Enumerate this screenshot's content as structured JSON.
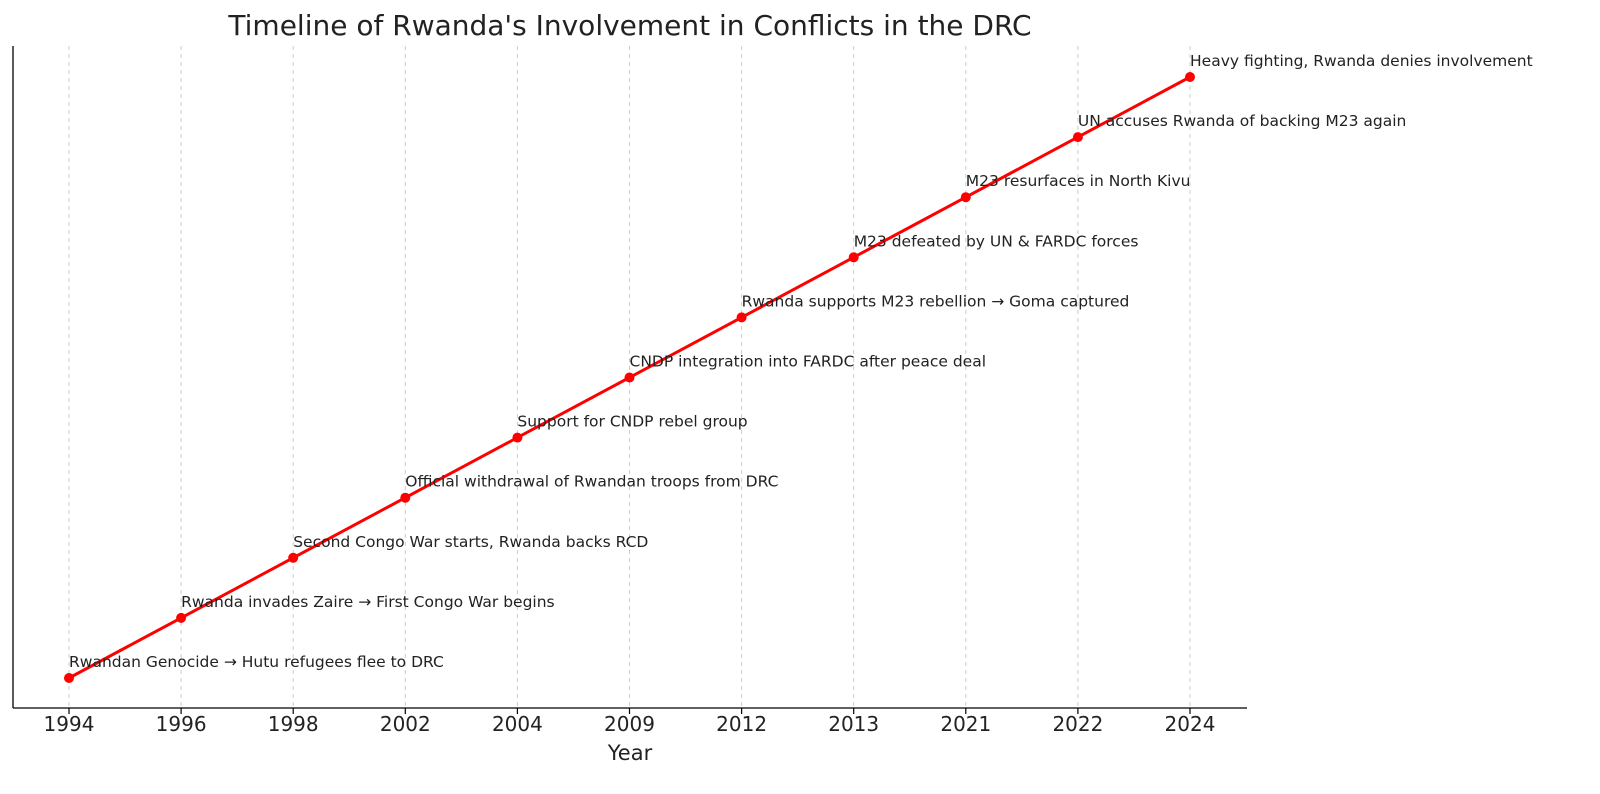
{
  "chart_data": {
    "type": "line",
    "title": "Timeline of Rwanda's Involvement in Conflicts in the DRC",
    "xlabel": "Year",
    "ylabel": "",
    "x": [
      "1994",
      "1996",
      "1998",
      "2002",
      "2004",
      "2009",
      "2012",
      "2013",
      "2021",
      "2022",
      "2024"
    ],
    "y": [
      1,
      2,
      3,
      4,
      5,
      6,
      7,
      8,
      9,
      10,
      11
    ],
    "annotations": [
      "Rwandan Genocide → Hutu refugees flee to DRC",
      "Rwanda invades Zaire → First Congo War begins",
      "Second Congo War starts, Rwanda backs RCD",
      "Official withdrawal of Rwandan troops from DRC",
      "Support for CNDP rebel group",
      "CNDP integration into FARDC after peace deal",
      "Rwanda supports M23 rebellion → Goma captured",
      "M23 defeated by UN & FARDC forces",
      "M23 resurfaces in North Kivu",
      "UN accuses Rwanda of backing M23 again",
      "Heavy fighting, Rwanda denies involvement"
    ],
    "color": "#ff0000",
    "grid": "x-only, dashed",
    "y_ticks_visible": false,
    "legend": "none"
  }
}
